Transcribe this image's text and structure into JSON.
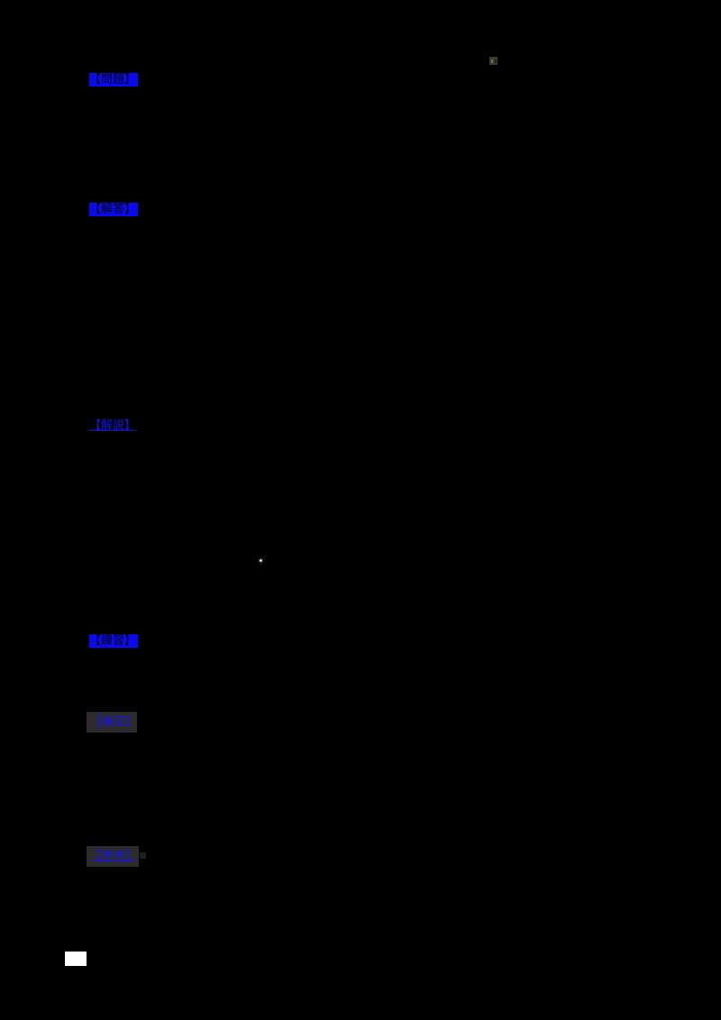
{
  "page": {
    "background_color": "#000000",
    "description": "Document page rendered on black; only colored elements visible"
  },
  "colors": {
    "label_blue": "#0a0af2",
    "link_blue": "#1212f0",
    "gray_chip": "#2b2b2b",
    "icon_gray": "#3a3a3a",
    "icon_olive": "#7a7a10",
    "white": "#ffffff"
  },
  "labels": [
    {
      "text": "【問題】",
      "style": "blue-highlight-black-text"
    },
    {
      "text": "【解答】",
      "style": "blue-highlight-black-text"
    },
    {
      "text": "【解説】",
      "style": "blue-underlined-link"
    },
    {
      "text": "【練習】",
      "style": "blue-highlight-black-text"
    },
    {
      "text": "【補足】",
      "style": "blue-text-on-gray-box"
    },
    {
      "text": "【参考】",
      "style": "blue-text-on-gray-box-underlined"
    }
  ],
  "icons": {
    "mini_image_icon": "tiny-gray-square-with-olive-mark",
    "sparkle_glyph": "✶"
  },
  "misc": {
    "white_rect": "small white image placeholder"
  }
}
